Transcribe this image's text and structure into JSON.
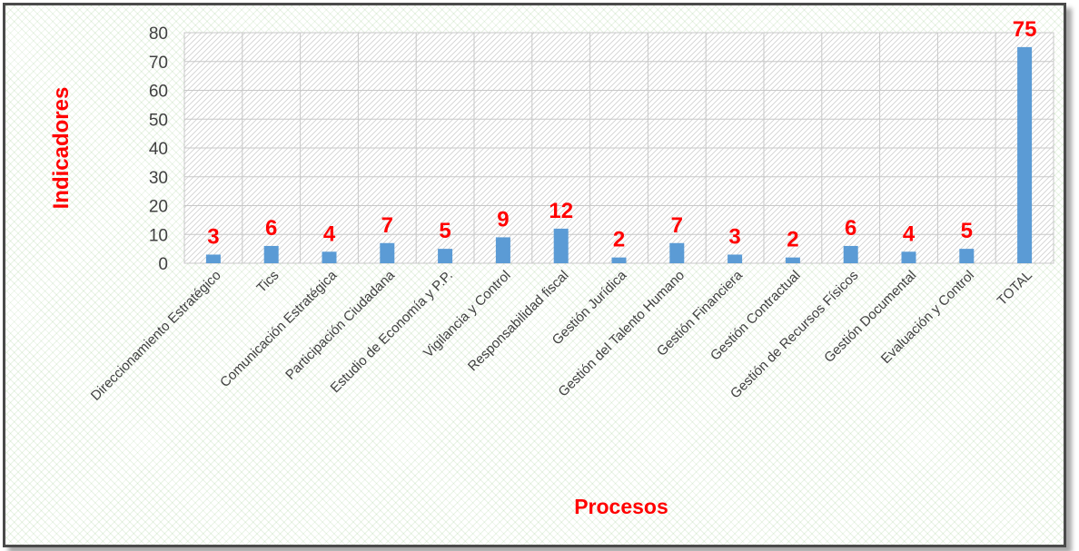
{
  "chart_data": {
    "type": "bar",
    "title": "",
    "xlabel": "Procesos",
    "ylabel": "Indicadores",
    "ylim": [
      0,
      80
    ],
    "yticks": [
      0,
      10,
      20,
      30,
      40,
      50,
      60,
      70,
      80
    ],
    "grid": true,
    "legend": "none",
    "categories": [
      "Direccionamiento Estratégico",
      "Tics",
      "Comunicación Estratégica",
      "Participación Ciudadana",
      "Estudio de Economía y P.P.",
      "Vigilancia y Control",
      "Responsabilidad fiscal",
      "Gestión Jurídica",
      "Gestión del Talento Humano",
      "Gestión Financiera",
      "Gestión Contractual",
      "Gestión de Recursos Físicos",
      "Gestión Documental",
      "Evaluación y Control",
      "TOTAL"
    ],
    "series": [
      {
        "values": [
          3,
          6,
          4,
          7,
          5,
          9,
          12,
          2,
          7,
          3,
          2,
          6,
          4,
          5,
          75
        ]
      }
    ],
    "data_labels": [
      "3",
      "6",
      "4",
      "7",
      "5",
      "9",
      "12",
      "2",
      "7",
      "3",
      "2",
      "6",
      "4",
      "5",
      "75"
    ]
  },
  "colors": {
    "bar": "#5b9bd5",
    "data_label": "#ff0000",
    "axis_title": "#ff0000",
    "tick_label": "#404040",
    "gridline": "#c8c8c8",
    "frame_border": "#4a4a4a"
  }
}
